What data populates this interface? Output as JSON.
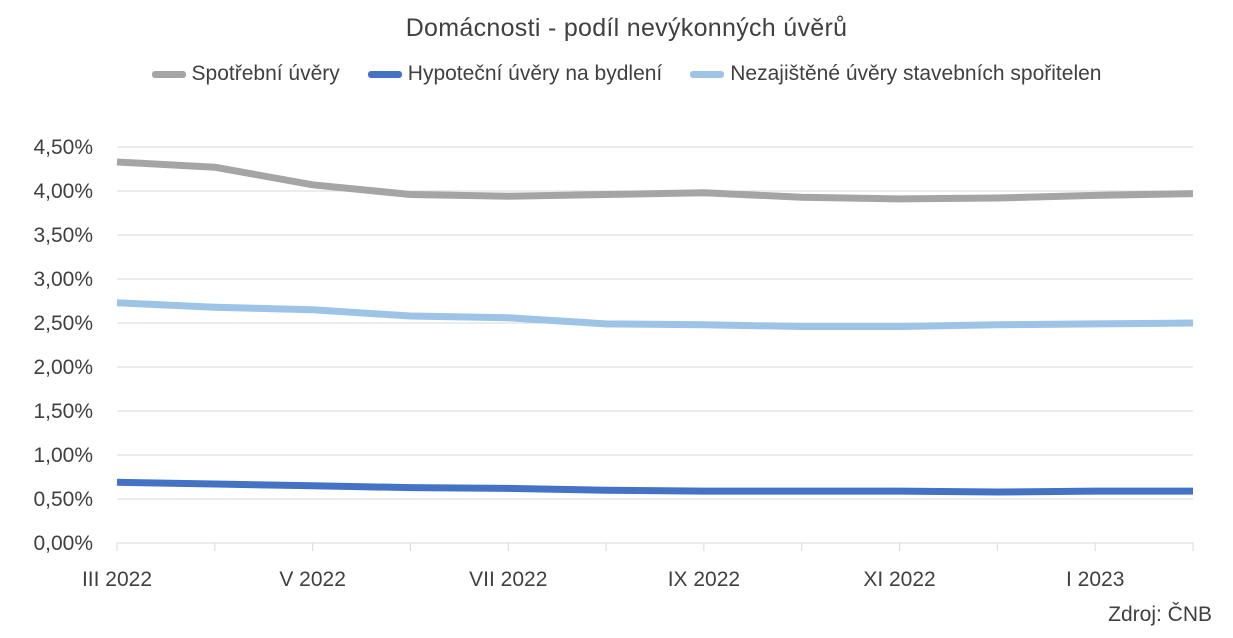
{
  "chart_data": {
    "type": "line",
    "title": "Domácnosti - podíl nevýkonných úvěrů",
    "xlabel": "",
    "ylabel": "",
    "x": [
      "III 2022",
      "IV 2022",
      "V 2022",
      "VI 2022",
      "VII 2022",
      "VIII 2022",
      "IX 2022",
      "X 2022",
      "XI 2022",
      "XII 2022",
      "I 2023",
      "II 2023"
    ],
    "x_tick_labels": [
      "III 2022",
      "V 2022",
      "VII 2022",
      "IX 2022",
      "XI 2022",
      "I 2023"
    ],
    "y_tick_labels": [
      "0,00%",
      "0,50%",
      "1,00%",
      "1,50%",
      "2,00%",
      "2,50%",
      "3,00%",
      "3,50%",
      "4,00%",
      "4,50%"
    ],
    "ylim": [
      0,
      4.5
    ],
    "y_unit": "%",
    "grid": true,
    "legend_position": "top",
    "series": [
      {
        "name": "Spotřební úvěry",
        "color": "#a5a5a5",
        "values": [
          4.33,
          4.27,
          4.07,
          3.96,
          3.94,
          3.96,
          3.98,
          3.93,
          3.91,
          3.92,
          3.95,
          3.97
        ]
      },
      {
        "name": "Hypoteční úvěry na bydlení",
        "color": "#4472c4",
        "values": [
          0.69,
          0.67,
          0.65,
          0.63,
          0.62,
          0.6,
          0.59,
          0.59,
          0.59,
          0.58,
          0.59,
          0.59
        ]
      },
      {
        "name": "Nezajištěné úvěry stavebních spořitelen",
        "color": "#9dc3e6",
        "values": [
          2.73,
          2.68,
          2.65,
          2.58,
          2.56,
          2.49,
          2.48,
          2.46,
          2.46,
          2.48,
          2.49,
          2.5
        ]
      }
    ]
  },
  "source_label": "Zdroj: ČNB"
}
